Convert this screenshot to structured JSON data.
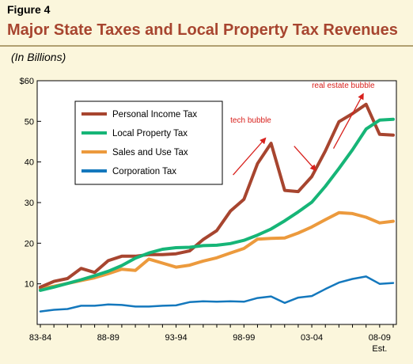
{
  "figure_label": "Figure 4",
  "title": "Major State Taxes and Local Property Tax Revenues",
  "units": "(In Billions)",
  "chart_data": {
    "type": "line",
    "title": "Major State Taxes and Local Property Tax Revenues",
    "ylabel": "(In Billions)",
    "xlabel": "",
    "ylim": [
      0,
      60
    ],
    "grid": false,
    "legend_position": "top-left",
    "x": [
      "1983-84",
      "1984-85",
      "1985-86",
      "1986-87",
      "1987-88",
      "1988-89",
      "1989-90",
      "1990-91",
      "1991-92",
      "1992-93",
      "1993-94",
      "1994-95",
      "1995-96",
      "1996-97",
      "1997-98",
      "1998-99",
      "1999-00",
      "2000-01",
      "2001-02",
      "2002-03",
      "2003-04",
      "2004-05",
      "2005-06",
      "2006-07",
      "2007-08",
      "2008-09",
      "2009-10"
    ],
    "x_tick_labels": [
      {
        "index": 0,
        "label": "83-84"
      },
      {
        "index": 5,
        "label": "88-89"
      },
      {
        "index": 10,
        "label": "93-94"
      },
      {
        "index": 15,
        "label": "98-99"
      },
      {
        "index": 20,
        "label": "03-04"
      },
      {
        "index": 25,
        "label": "08-09"
      }
    ],
    "x_tick_sublabel": {
      "index": 25,
      "label": "Est."
    },
    "y_ticks": [
      {
        "value": 10,
        "label": "10"
      },
      {
        "value": 20,
        "label": "20"
      },
      {
        "value": 30,
        "label": "30"
      },
      {
        "value": 40,
        "label": "40"
      },
      {
        "value": 50,
        "label": "50"
      },
      {
        "value": 60,
        "label": "$60"
      }
    ],
    "series": [
      {
        "name": "Personal Income Tax",
        "color": "#a7452f",
        "values": [
          9.2,
          10.6,
          11.3,
          13.8,
          12.8,
          15.7,
          16.8,
          16.8,
          17.2,
          17.2,
          17.4,
          18.1,
          20.9,
          23.1,
          27.9,
          30.8,
          39.6,
          44.6,
          33.0,
          32.7,
          36.4,
          42.7,
          49.9,
          51.9,
          54.2,
          46.8,
          46.6
        ]
      },
      {
        "name": "Local Property Tax",
        "color": "#16b577",
        "values": [
          8.4,
          9.2,
          10.1,
          11.0,
          12.0,
          13.1,
          14.5,
          16.3,
          17.6,
          18.5,
          18.9,
          19.0,
          19.4,
          19.5,
          19.9,
          20.7,
          22.0,
          23.5,
          25.5,
          27.7,
          30.1,
          34.0,
          38.4,
          43.0,
          48.1,
          50.3,
          50.5
        ]
      },
      {
        "name": "Sales and Use Tax",
        "color": "#ec9a3d",
        "values": [
          8.8,
          9.4,
          10.1,
          10.8,
          11.5,
          12.5,
          13.6,
          13.3,
          16.1,
          15.1,
          14.1,
          14.6,
          15.6,
          16.4,
          17.6,
          18.7,
          21.0,
          21.2,
          21.3,
          22.5,
          24.0,
          25.8,
          27.5,
          27.3,
          26.4,
          25.0,
          25.4
        ]
      },
      {
        "name": "Corporation Tax",
        "color": "#1478bd",
        "values": [
          3.2,
          3.6,
          3.8,
          4.6,
          4.6,
          4.9,
          4.8,
          4.4,
          4.4,
          4.6,
          4.7,
          5.5,
          5.7,
          5.6,
          5.7,
          5.6,
          6.5,
          6.9,
          5.3,
          6.6,
          7.0,
          8.7,
          10.3,
          11.2,
          11.8,
          10.0,
          10.2
        ]
      }
    ],
    "annotations": [
      {
        "text": "tech bubble",
        "arrow_from": [
          14.2,
          36.8
        ],
        "arrow_to": [
          16.6,
          45.9
        ],
        "label_at": [
          14.0,
          49.7
        ]
      },
      {
        "text": "real estate bubble",
        "arrow_from": [
          21.6,
          43.3
        ],
        "arrow_to": [
          23.8,
          56.8
        ],
        "label_at": [
          20.0,
          58.2
        ]
      },
      {
        "text": "",
        "arrow_from": [
          18.7,
          43.9
        ],
        "arrow_to": [
          20.3,
          37.9
        ]
      }
    ]
  }
}
